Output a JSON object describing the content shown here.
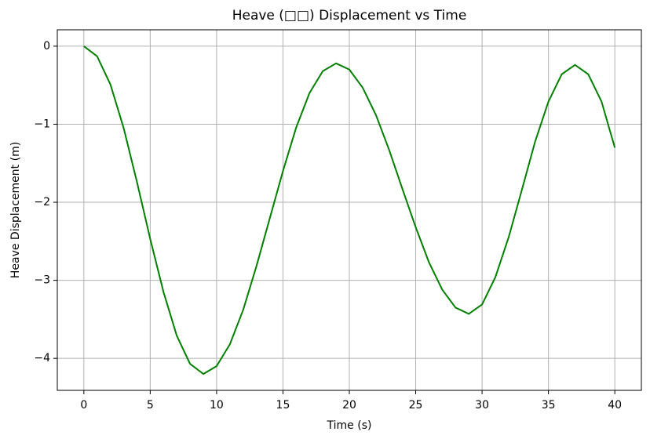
{
  "chart_data": {
    "type": "line",
    "title": "Heave (□□) Displacement vs Time",
    "x_label": "Time (s)",
    "y_label": "Heave Displacement (m)",
    "x": [
      0,
      1,
      2,
      3,
      4,
      5,
      6,
      7,
      8,
      9,
      10,
      11,
      12,
      13,
      14,
      15,
      16,
      17,
      18,
      19,
      20,
      21,
      22,
      23,
      24,
      25,
      26,
      27,
      28,
      29,
      30,
      31,
      32,
      33,
      34,
      35,
      36,
      37,
      38,
      39,
      40
    ],
    "series": [
      {
        "color": "#008000",
        "values": [
          0,
          -0.13,
          -0.49,
          -1.05,
          -1.74,
          -2.47,
          -3.15,
          -3.71,
          -4.07,
          -4.2,
          -4.1,
          -3.82,
          -3.38,
          -2.82,
          -2.21,
          -1.6,
          -1.04,
          -0.6,
          -0.32,
          -0.22,
          -0.3,
          -0.53,
          -0.88,
          -1.33,
          -1.83,
          -2.32,
          -2.77,
          -3.12,
          -3.35,
          -3.43,
          -3.31,
          -2.96,
          -2.45,
          -1.84,
          -1.22,
          -0.71,
          -0.36,
          -0.24,
          -0.36,
          -0.71,
          -1.3
        ]
      }
    ],
    "xlim": [
      -2,
      42
    ],
    "ylim": [
      -4.41,
      0.21
    ],
    "xticks": [
      0,
      5,
      10,
      15,
      20,
      25,
      30,
      35,
      40
    ],
    "yticks": [
      0,
      {
        "value": -1,
        "label": "−1"
      },
      {
        "value": -2,
        "label": "−2"
      },
      {
        "value": -3,
        "label": "−3"
      },
      {
        "value": -4,
        "label": "−4"
      }
    ],
    "grid": true
  }
}
